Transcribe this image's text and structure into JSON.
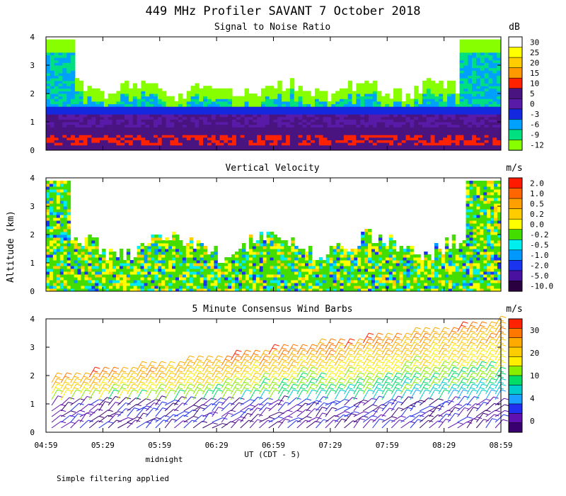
{
  "title": "449 MHz Profiler SAVANT  7 October 2018",
  "ylabel": "Altitude (km)",
  "xlabel": "UT  (CDT - 5)",
  "midnight_label": "midnight",
  "footnote": "Simple filtering applied",
  "x_ticks": [
    "04:59",
    "05:29",
    "05:59",
    "06:29",
    "06:59",
    "07:29",
    "07:59",
    "08:29",
    "08:59"
  ],
  "y_ticks": [
    "0",
    "1",
    "2",
    "3",
    "4"
  ],
  "chart_data": [
    {
      "type": "heatmap",
      "title": "Signal to Noise Ratio",
      "ylim": [
        0,
        4
      ],
      "colorbar": {
        "unit": "dB",
        "labels": [
          "30",
          "25",
          "20",
          "15",
          "10",
          "5",
          "0",
          "-3",
          "-6",
          "-9",
          "-12"
        ],
        "colors": [
          "#ffffff",
          "#ffff00",
          "#ffcc00",
          "#ff9900",
          "#ff2200",
          "#4a1480",
          "#5a1aa8",
          "#1428e0",
          "#00a0ff",
          "#00e080",
          "#88ff00"
        ]
      }
    },
    {
      "type": "heatmap",
      "title": "Vertical Velocity",
      "ylim": [
        0,
        4
      ],
      "colorbar": {
        "unit": "m/s",
        "labels": [
          "2.0",
          "1.0",
          "0.5",
          "0.2",
          "0.0",
          "-0.2",
          "-0.5",
          "-1.0",
          "-2.0",
          "-5.0",
          "-10.0"
        ],
        "colors": [
          "#ff1a00",
          "#ff6600",
          "#ffa000",
          "#ffcc00",
          "#ffff00",
          "#44dd00",
          "#00eeee",
          "#0099ff",
          "#1a33ee",
          "#4a10a0",
          "#2a0040"
        ]
      }
    },
    {
      "type": "scatter",
      "title": "5 Minute Consensus Wind Barbs",
      "ylim": [
        0,
        4
      ],
      "colorbar": {
        "unit": "m/s",
        "labels": [
          "30",
          "20",
          "10",
          "4",
          "0"
        ],
        "colors": [
          "#ff2200",
          "#ff7700",
          "#ffaa00",
          "#ffcc00",
          "#ffee00",
          "#88ee00",
          "#00dd66",
          "#00cccc",
          "#1aa0ff",
          "#2030ee",
          "#6010b0",
          "#3a0070"
        ]
      }
    }
  ]
}
